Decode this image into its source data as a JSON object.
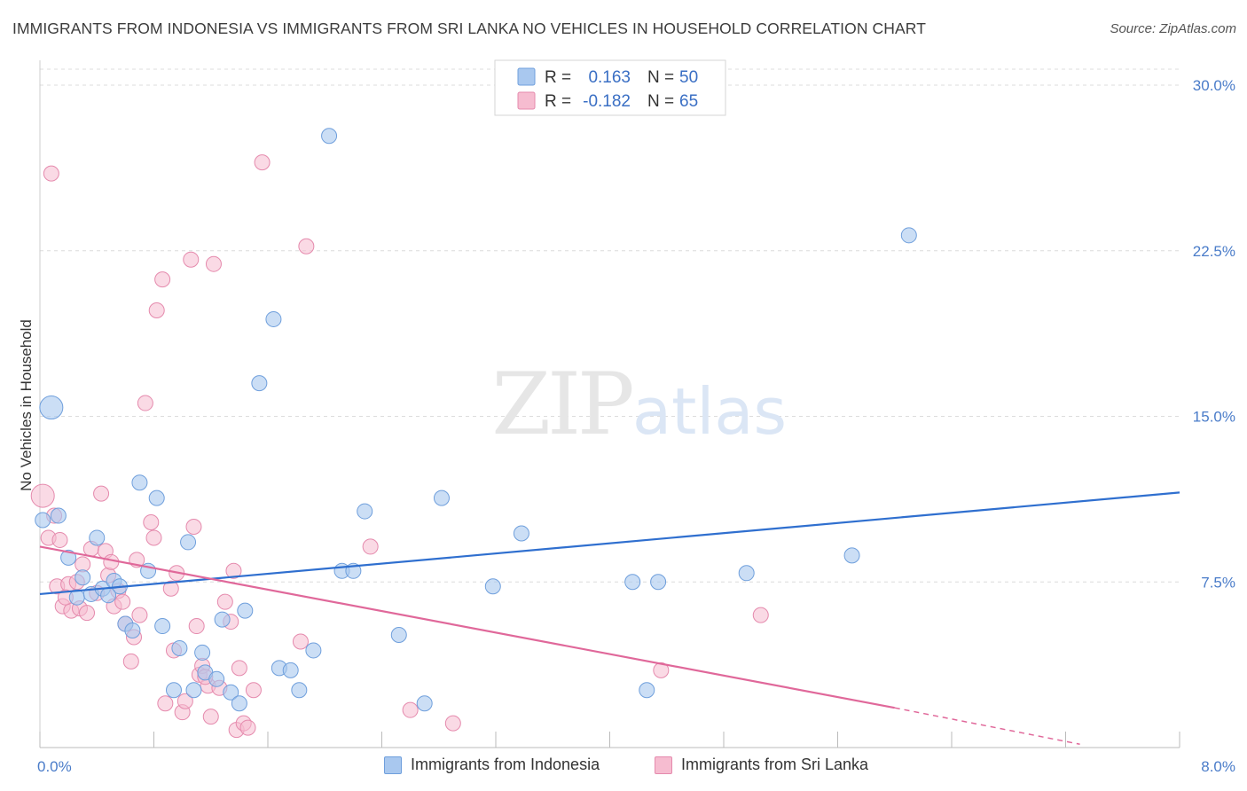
{
  "header": {
    "title": "IMMIGRANTS FROM INDONESIA VS IMMIGRANTS FROM SRI LANKA NO VEHICLES IN HOUSEHOLD CORRELATION CHART",
    "source": "Source: ZipAtlas.com"
  },
  "watermark": {
    "zip": "ZIP",
    "atlas": "atlas"
  },
  "legend_box": {
    "rows": [
      {
        "r_label": "R =",
        "r_value": "0.163",
        "n_label": "N =",
        "n_value": "50"
      },
      {
        "r_label": "R =",
        "r_value": "-0.182",
        "n_label": "N =",
        "n_value": "65"
      }
    ]
  },
  "colors": {
    "indonesia_fill": "#a9c8ef",
    "indonesia_stroke": "#6f9fdc",
    "indonesia_line": "#2f6fcf",
    "srilanka_fill": "#f6bcd0",
    "srilanka_stroke": "#e58aad",
    "srilanka_line": "#e0689a",
    "grid": "#dcdcdc",
    "tick_text": "#4a7cc9"
  },
  "chart_data": {
    "type": "scatter",
    "title": "IMMIGRANTS FROM INDONESIA VS IMMIGRANTS FROM SRI LANKA NO VEHICLES IN HOUSEHOLD CORRELATION CHART",
    "xlabel": "",
    "ylabel": "No Vehicles in Household",
    "xlim": [
      0,
      8
    ],
    "ylim": [
      0,
      30
    ],
    "x_tick_labels": [
      "0.0%",
      "8.0%"
    ],
    "y_ticks": [
      7.5,
      15,
      22.5,
      30
    ],
    "y_tick_labels": [
      "7.5%",
      "15.0%",
      "22.5%",
      "30.0%"
    ],
    "grid": true,
    "legend_position": "top-center",
    "series": [
      {
        "name": "Immigrants from Indonesia",
        "trend": {
          "x": [
            0.0,
            8.0
          ],
          "y": [
            6.95,
            11.55
          ]
        },
        "points": [
          {
            "x": 0.08,
            "y": 15.4,
            "big": 1
          },
          {
            "x": 0.13,
            "y": 10.5
          },
          {
            "x": 0.2,
            "y": 8.6
          },
          {
            "x": 0.26,
            "y": 6.8
          },
          {
            "x": 0.3,
            "y": 7.7
          },
          {
            "x": 0.36,
            "y": 6.95
          },
          {
            "x": 0.4,
            "y": 9.5
          },
          {
            "x": 0.44,
            "y": 7.2
          },
          {
            "x": 0.52,
            "y": 7.55
          },
          {
            "x": 0.56,
            "y": 7.3
          },
          {
            "x": 0.6,
            "y": 5.6
          },
          {
            "x": 0.65,
            "y": 5.3
          },
          {
            "x": 0.7,
            "y": 12.0
          },
          {
            "x": 0.76,
            "y": 8.0
          },
          {
            "x": 0.82,
            "y": 11.3
          },
          {
            "x": 0.86,
            "y": 5.5
          },
          {
            "x": 0.94,
            "y": 2.6
          },
          {
            "x": 0.98,
            "y": 4.5
          },
          {
            "x": 1.04,
            "y": 9.3
          },
          {
            "x": 1.08,
            "y": 2.6
          },
          {
            "x": 1.14,
            "y": 4.3
          },
          {
            "x": 1.16,
            "y": 3.4
          },
          {
            "x": 1.24,
            "y": 3.1
          },
          {
            "x": 1.28,
            "y": 5.8
          },
          {
            "x": 1.34,
            "y": 2.5
          },
          {
            "x": 1.4,
            "y": 2.0
          },
          {
            "x": 1.44,
            "y": 6.2
          },
          {
            "x": 1.54,
            "y": 16.5
          },
          {
            "x": 1.64,
            "y": 19.4
          },
          {
            "x": 1.68,
            "y": 3.6
          },
          {
            "x": 1.76,
            "y": 3.5
          },
          {
            "x": 1.82,
            "y": 2.6
          },
          {
            "x": 1.92,
            "y": 4.4
          },
          {
            "x": 2.03,
            "y": 27.7
          },
          {
            "x": 2.12,
            "y": 8.0
          },
          {
            "x": 2.2,
            "y": 8.0
          },
          {
            "x": 2.28,
            "y": 10.7
          },
          {
            "x": 2.52,
            "y": 5.1
          },
          {
            "x": 2.7,
            "y": 2.0
          },
          {
            "x": 2.82,
            "y": 11.3
          },
          {
            "x": 3.18,
            "y": 7.3
          },
          {
            "x": 3.38,
            "y": 9.7
          },
          {
            "x": 4.16,
            "y": 7.5
          },
          {
            "x": 4.26,
            "y": 2.6
          },
          {
            "x": 4.34,
            "y": 7.5
          },
          {
            "x": 4.96,
            "y": 7.9
          },
          {
            "x": 5.7,
            "y": 8.7
          },
          {
            "x": 6.1,
            "y": 23.2
          },
          {
            "x": 0.02,
            "y": 10.3
          },
          {
            "x": 0.48,
            "y": 6.9
          }
        ]
      },
      {
        "name": "Immigrants from Sri Lanka",
        "trend": {
          "x": [
            0.0,
            6.0
          ],
          "y": [
            9.1,
            1.8
          ]
        },
        "trend_dashed": {
          "x": [
            6.0,
            7.3
          ],
          "y": [
            1.8,
            0.15
          ]
        },
        "points": [
          {
            "x": 0.02,
            "y": 11.4,
            "big": 1
          },
          {
            "x": 0.06,
            "y": 9.5
          },
          {
            "x": 0.08,
            "y": 26.0
          },
          {
            "x": 0.1,
            "y": 10.5
          },
          {
            "x": 0.12,
            "y": 7.3
          },
          {
            "x": 0.14,
            "y": 9.4
          },
          {
            "x": 0.16,
            "y": 6.4
          },
          {
            "x": 0.2,
            "y": 7.4
          },
          {
            "x": 0.22,
            "y": 6.2
          },
          {
            "x": 0.26,
            "y": 7.5
          },
          {
            "x": 0.28,
            "y": 6.3
          },
          {
            "x": 0.3,
            "y": 8.3
          },
          {
            "x": 0.33,
            "y": 6.1
          },
          {
            "x": 0.36,
            "y": 9.0
          },
          {
            "x": 0.4,
            "y": 7.0
          },
          {
            "x": 0.43,
            "y": 11.5
          },
          {
            "x": 0.46,
            "y": 8.9
          },
          {
            "x": 0.48,
            "y": 7.8
          },
          {
            "x": 0.5,
            "y": 8.4
          },
          {
            "x": 0.52,
            "y": 6.4
          },
          {
            "x": 0.55,
            "y": 7.1
          },
          {
            "x": 0.58,
            "y": 6.6
          },
          {
            "x": 0.6,
            "y": 5.6
          },
          {
            "x": 0.64,
            "y": 3.9
          },
          {
            "x": 0.66,
            "y": 5.0
          },
          {
            "x": 0.7,
            "y": 6.0
          },
          {
            "x": 0.74,
            "y": 15.6
          },
          {
            "x": 0.78,
            "y": 10.2
          },
          {
            "x": 0.8,
            "y": 9.5
          },
          {
            "x": 0.82,
            "y": 19.8
          },
          {
            "x": 0.86,
            "y": 21.2
          },
          {
            "x": 0.88,
            "y": 2.0
          },
          {
            "x": 0.92,
            "y": 7.2
          },
          {
            "x": 0.94,
            "y": 4.4
          },
          {
            "x": 0.96,
            "y": 7.9
          },
          {
            "x": 1.0,
            "y": 1.6
          },
          {
            "x": 1.02,
            "y": 2.1
          },
          {
            "x": 1.06,
            "y": 22.1
          },
          {
            "x": 1.08,
            "y": 10.0
          },
          {
            "x": 1.1,
            "y": 5.5
          },
          {
            "x": 1.12,
            "y": 3.3
          },
          {
            "x": 1.14,
            "y": 3.7
          },
          {
            "x": 1.18,
            "y": 2.8
          },
          {
            "x": 1.2,
            "y": 1.4
          },
          {
            "x": 1.22,
            "y": 21.9
          },
          {
            "x": 1.26,
            "y": 2.7
          },
          {
            "x": 1.3,
            "y": 6.6
          },
          {
            "x": 1.34,
            "y": 5.7
          },
          {
            "x": 1.36,
            "y": 8.0
          },
          {
            "x": 1.38,
            "y": 0.8
          },
          {
            "x": 1.4,
            "y": 3.6
          },
          {
            "x": 1.43,
            "y": 1.1
          },
          {
            "x": 1.46,
            "y": 0.9
          },
          {
            "x": 1.5,
            "y": 2.6
          },
          {
            "x": 1.56,
            "y": 26.5
          },
          {
            "x": 1.83,
            "y": 4.8
          },
          {
            "x": 1.87,
            "y": 22.7
          },
          {
            "x": 2.32,
            "y": 9.1
          },
          {
            "x": 2.6,
            "y": 1.7
          },
          {
            "x": 2.9,
            "y": 1.1
          },
          {
            "x": 4.36,
            "y": 3.5
          },
          {
            "x": 5.06,
            "y": 6.0
          },
          {
            "x": 0.18,
            "y": 6.8
          },
          {
            "x": 1.16,
            "y": 3.2
          },
          {
            "x": 0.68,
            "y": 8.5
          }
        ]
      }
    ]
  },
  "bottom_legend": [
    {
      "label": "Immigrants from Indonesia"
    },
    {
      "label": "Immigrants from Sri Lanka"
    }
  ]
}
